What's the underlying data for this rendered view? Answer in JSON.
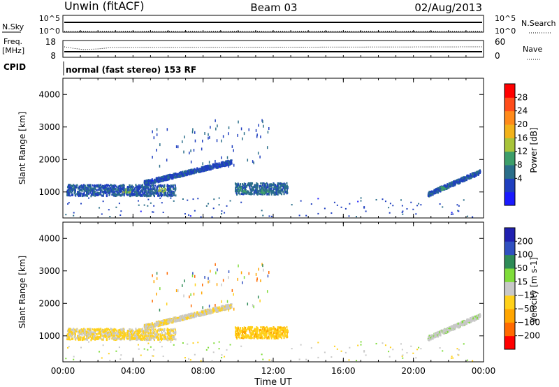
{
  "header": {
    "station": "Unwin (fitACF)",
    "beam": "Beam 03",
    "date": "02/Aug/2013"
  },
  "noise_panel": {
    "left_label": "N.Sky",
    "left_ticks": [
      "10^5",
      "10^0"
    ],
    "right_label": "N.Search",
    "right_ticks": [
      "10^5",
      "10^0"
    ]
  },
  "freq_panel": {
    "left_label_1": "Freq.",
    "left_label_2": "[MHz]",
    "left_ticks": [
      "18",
      "8"
    ],
    "right_label": "Nave",
    "right_ticks": [
      "60",
      "0"
    ]
  },
  "cpid": {
    "label": "CPID",
    "mode": "normal (fast stereo) 153 RF"
  },
  "x_axis": {
    "label": "Time UT",
    "ticks": [
      "00:00",
      "04:00",
      "08:00",
      "12:00",
      "16:00",
      "20:00",
      "00:00"
    ]
  },
  "colors": {
    "power_scale": [
      "#1a1aff",
      "#1f3fbf",
      "#2a6e8a",
      "#3d9e6a",
      "#a8c43a",
      "#f2b21a",
      "#ff8a1a",
      "#ff4d1a",
      "#ff0000"
    ],
    "velocity_scale": [
      "#ff0000",
      "#ff6a00",
      "#ffa500",
      "#ffd11a",
      "#c8c8c8",
      "#7fdc3a",
      "#2e8b57",
      "#3050c0",
      "#2020b0"
    ]
  },
  "chart_data": [
    {
      "type": "heatmap",
      "name": "power",
      "ylabel": "Slant Range [km]",
      "yticks": [
        "4000",
        "3000",
        "2000",
        "1000"
      ],
      "ylim": [
        200,
        4500
      ],
      "xlim": [
        0,
        24
      ],
      "colorbar_label": "Power [dB]",
      "colorbar_ticks": [
        "28",
        "24",
        "20",
        "16",
        "12",
        "8",
        "4"
      ],
      "colorbar_range": [
        0,
        32
      ],
      "echo_bands": [
        {
          "t_start": 0.2,
          "t_end": 6.4,
          "r_low": 900,
          "r_high": 1250,
          "level": 6
        },
        {
          "t_start": 4.6,
          "t_end": 9.6,
          "r_low": 1300,
          "r_high": 1950,
          "level": 5
        },
        {
          "t_start": 9.8,
          "t_end": 12.8,
          "r_low": 950,
          "r_high": 1300,
          "level": 7
        },
        {
          "t_start": 20.8,
          "t_end": 23.8,
          "r_low": 950,
          "r_high": 1650,
          "level": 6
        }
      ],
      "enhancements": [
        {
          "t": 3.6,
          "r": 1050,
          "level": 14
        },
        {
          "t": 5.6,
          "r": 1100,
          "level": 16
        },
        {
          "t": 10.2,
          "r": 1100,
          "level": 12
        },
        {
          "t": 11.5,
          "r": 1050,
          "level": 11
        },
        {
          "t": 21.6,
          "r": 1150,
          "level": 12
        }
      ]
    },
    {
      "type": "heatmap",
      "name": "velocity",
      "ylabel": "Slant Range [km]",
      "yticks": [
        "4000",
        "3000",
        "2000",
        "1000"
      ],
      "ylim": [
        200,
        4500
      ],
      "xlim": [
        0,
        24
      ],
      "colorbar_label": "Velocity [m s-1]",
      "colorbar_ticks": [
        "200",
        "100",
        "50",
        "15",
        "−15",
        "−50",
        "−100",
        "−200"
      ],
      "echo_bands": [
        {
          "t_start": 0.2,
          "t_end": 6.4,
          "r_low": 900,
          "r_high": 1250,
          "velocity": -20
        },
        {
          "t_start": 4.6,
          "t_end": 9.6,
          "r_low": 1300,
          "r_high": 1950,
          "velocity": -10
        },
        {
          "t_start": 9.8,
          "t_end": 12.8,
          "r_low": 950,
          "r_high": 1300,
          "velocity": -40
        },
        {
          "t_start": 20.8,
          "t_end": 23.8,
          "r_low": 950,
          "r_high": 1650,
          "velocity": 5
        }
      ]
    }
  ]
}
